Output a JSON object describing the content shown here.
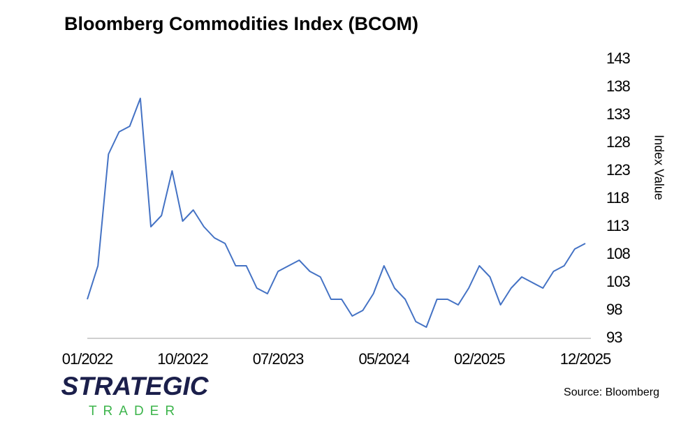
{
  "chart_data": {
    "type": "line",
    "title": "Bloomberg Commodities Index (BCOM)",
    "y_label": "Index Value",
    "source": "Source: Bloomberg",
    "brand": [
      "STRATEGIC",
      "TRADER"
    ],
    "categories": [
      "01/2022",
      null,
      null,
      null,
      null,
      null,
      null,
      null,
      null,
      "10/2022",
      null,
      null,
      null,
      null,
      null,
      null,
      null,
      null,
      "07/2023",
      null,
      null,
      null,
      null,
      null,
      null,
      null,
      null,
      null,
      "05/2024",
      null,
      null,
      null,
      null,
      null,
      null,
      null,
      null,
      "02/2025",
      null,
      null,
      null,
      null,
      null,
      null,
      null,
      null,
      null,
      "12/2025"
    ],
    "series": [
      {
        "name": "BCOM",
        "color": "#4472c4",
        "values": [
          100,
          106,
          126,
          130,
          131,
          136,
          113,
          115,
          123,
          114,
          116,
          113,
          111,
          110,
          106,
          106,
          102,
          101,
          105,
          106,
          107,
          105,
          104,
          100,
          100,
          97,
          98,
          101,
          106,
          102,
          100,
          96,
          95,
          100,
          100,
          99,
          102,
          106,
          104,
          99,
          102,
          104,
          103,
          102,
          105,
          106,
          109,
          110
        ]
      }
    ],
    "ylim": [
      93,
      143
    ],
    "yticks": [
      93,
      98,
      103,
      108,
      113,
      118,
      123,
      128,
      133,
      138,
      143
    ],
    "y_axis_side": "right",
    "grid": false
  }
}
